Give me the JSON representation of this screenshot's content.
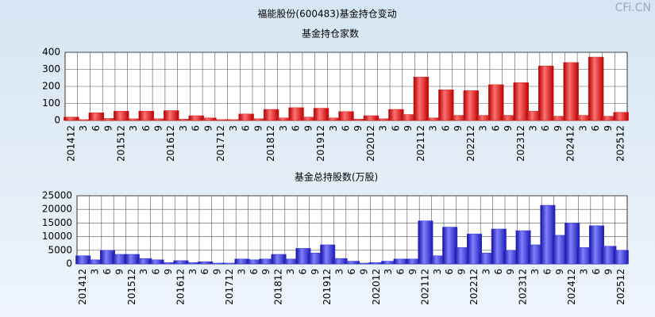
{
  "title": "福能股份(600483)基金持仓变动",
  "watermark": "CFi.CN",
  "chart_data": [
    {
      "type": "bar",
      "title": "基金持仓家数",
      "color": "#e02020",
      "categories": [
        "201412",
        "3",
        "6",
        "9",
        "201512",
        "3",
        "6",
        "9",
        "201612",
        "3",
        "6",
        "9",
        "201712",
        "3",
        "6",
        "9",
        "201812",
        "3",
        "6",
        "9",
        "201912",
        "3",
        "6",
        "9",
        "202012",
        "3",
        "6",
        "9",
        "202112",
        "3",
        "6",
        "9",
        "202212",
        "3",
        "6",
        "9",
        "202312",
        "3",
        "6",
        "9",
        "202412",
        "3",
        "6",
        "9",
        "202512"
      ],
      "values": [
        20,
        5,
        45,
        12,
        55,
        10,
        55,
        10,
        58,
        8,
        28,
        15,
        5,
        5,
        38,
        10,
        65,
        15,
        75,
        20,
        72,
        15,
        52,
        8,
        28,
        10,
        65,
        35,
        255,
        15,
        180,
        30,
        175,
        30,
        210,
        30,
        222,
        55,
        320,
        25,
        340,
        30,
        372,
        25,
        48
      ],
      "ylim": [
        0,
        400
      ],
      "yticks": [
        0,
        100,
        200,
        300,
        400
      ],
      "grid": true
    },
    {
      "type": "bar",
      "title": "基金总持股数(万股)",
      "color": "#3030e0",
      "categories": [
        "201412",
        "3",
        "6",
        "9",
        "201512",
        "3",
        "6",
        "9",
        "201612",
        "3",
        "6",
        "9",
        "201712",
        "3",
        "6",
        "9",
        "201812",
        "3",
        "6",
        "9",
        "201912",
        "3",
        "6",
        "9",
        "202012",
        "3",
        "6",
        "9",
        "202112",
        "3",
        "6",
        "9",
        "202212",
        "3",
        "6",
        "9",
        "202312",
        "3",
        "6",
        "9",
        "202412",
        "3",
        "6",
        "9",
        "202512"
      ],
      "values": [
        3000,
        1500,
        5000,
        3500,
        3500,
        2000,
        1500,
        500,
        1200,
        500,
        800,
        300,
        300,
        1800,
        1500,
        1800,
        3500,
        1800,
        5700,
        4000,
        7000,
        2000,
        1000,
        300,
        500,
        1000,
        1800,
        1800,
        15800,
        3000,
        13500,
        6000,
        11000,
        4000,
        12800,
        5000,
        12200,
        7000,
        21500,
        10500,
        15000,
        6000,
        14000,
        6500,
        5000
      ],
      "ylim": [
        0,
        25000
      ],
      "yticks": [
        0,
        5000,
        10000,
        15000,
        20000,
        25000
      ],
      "grid": true
    }
  ]
}
